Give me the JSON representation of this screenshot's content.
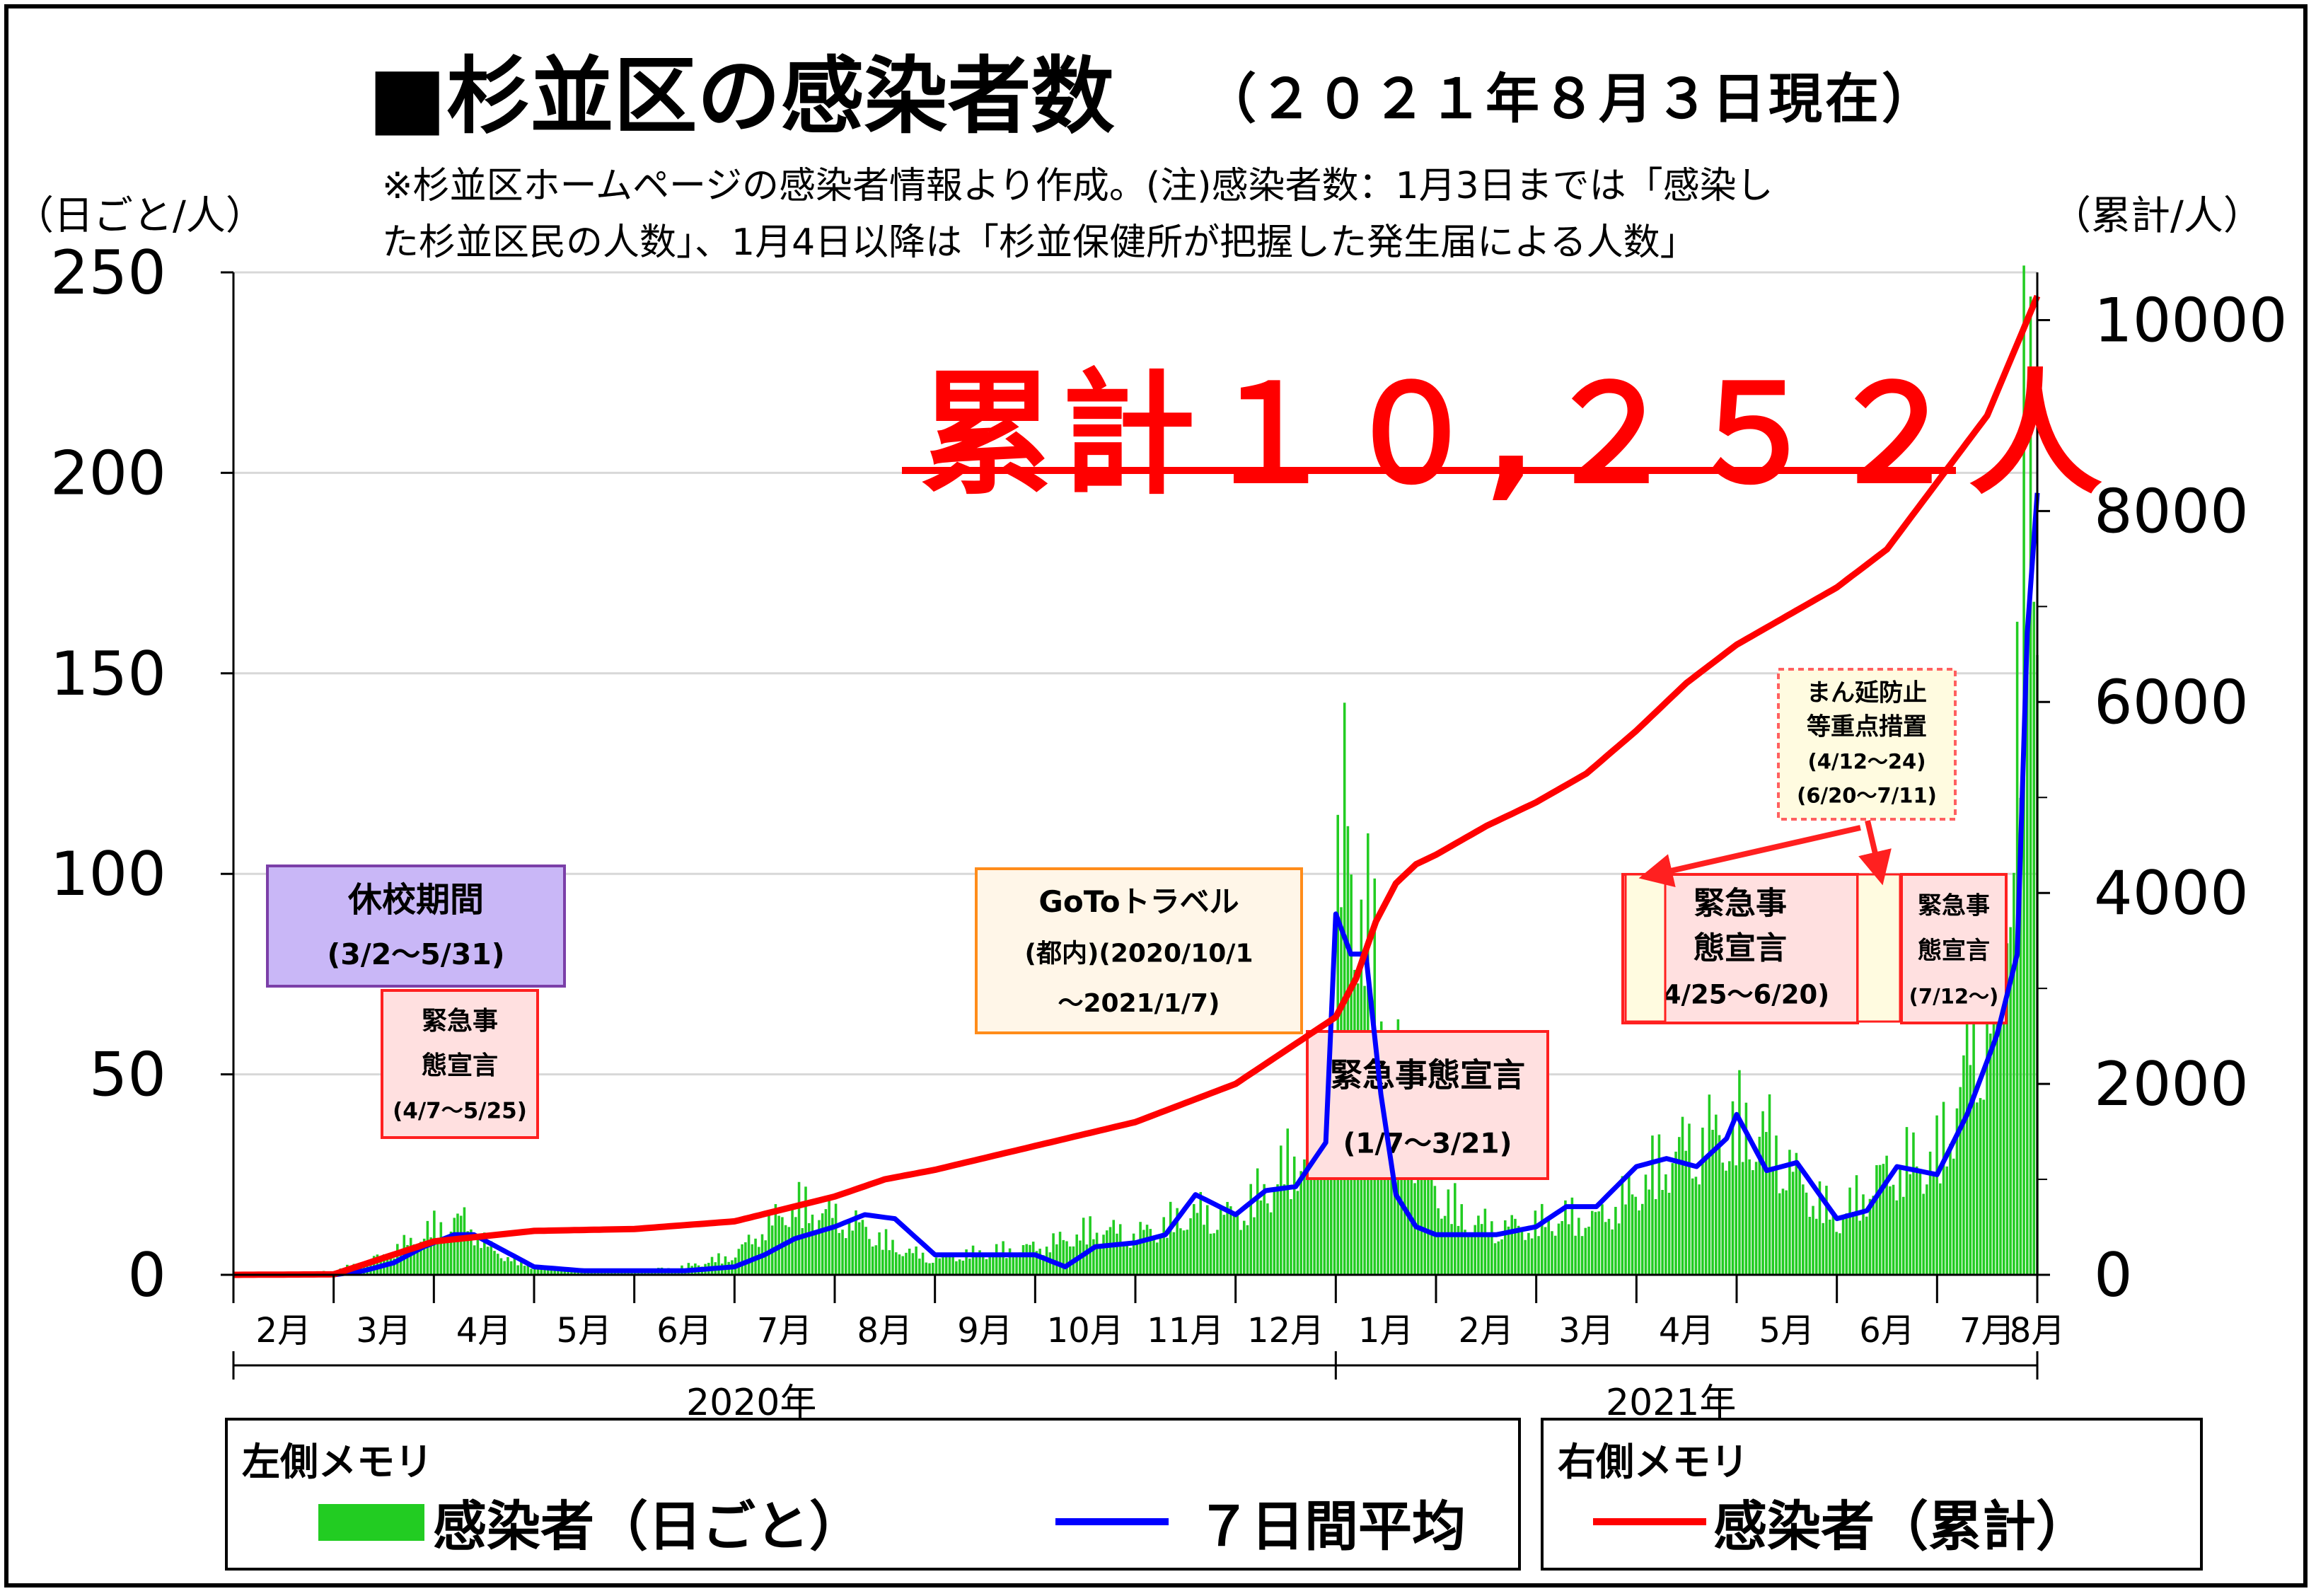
{
  "title": "■杉並区の感染者数",
  "title_date": "（２０２１年８月３日現在）",
  "notes": [
    "※杉並区ホームページの感染者情報より作成。(注)感染者数：1月3日までは「感染し",
    "た杉並区民の人数」、1月4日以降は「杉並保健所が把握した発生届による人数」"
  ],
  "left_axis_unit": "（日ごと/人）",
  "right_axis_unit": "（累計/人）",
  "total_label": "累計１０,２５２人",
  "legend": {
    "left_header": "左側メモリ",
    "daily_label": "感染者（日ごと）",
    "avg_label": "７日間平均",
    "right_header": "右側メモリ",
    "cumulative_label": "感染者（累計）"
  },
  "years": [
    "2020年",
    "2021年"
  ],
  "colors": {
    "daily": "#22cc22",
    "avg": "#0000ff",
    "cumulative": "#ff0000"
  },
  "annotations": [
    {
      "id": "school-closure",
      "lines": [
        "休校期間",
        "(3/2〜5/31)"
      ],
      "fill": "#c9b7f7",
      "border": "#7b3fa8"
    },
    {
      "id": "emergency-1",
      "lines": [
        "緊急事",
        "態宣言",
        "(4/7〜5/25)"
      ],
      "fill": "#ffe0e0",
      "border": "#ff2020"
    },
    {
      "id": "goto-travel",
      "lines": [
        "GoToトラベル",
        "(都内)(2020/10/1",
        "〜2021/1/7)"
      ],
      "fill": "#fff6e8",
      "border": "#ff8c1a"
    },
    {
      "id": "emergency-2",
      "lines": [
        "緊急事態宣言",
        "(1/7〜3/21)"
      ],
      "fill": "#ffe0e0",
      "border": "#ff2020"
    },
    {
      "id": "priority-measures",
      "lines": [
        "まん延防止",
        "等重点措置",
        "(4/12〜24)",
        "(6/20〜7/11)"
      ],
      "fill": "#fffbe0",
      "border": "#ff6060"
    },
    {
      "id": "emergency-3",
      "lines": [
        "緊急事",
        "態宣言",
        "(4/25〜6/20)"
      ],
      "fill": "#ffe0e0",
      "border": "#ff2020"
    },
    {
      "id": "emergency-4",
      "lines": [
        "緊急事",
        "態宣言",
        "(7/12〜)"
      ],
      "fill": "#ffe0e0",
      "border": "#ff2020"
    }
  ],
  "chart_data": {
    "type": "bar",
    "x_tick_labels": [
      "2月",
      "3月",
      "4月",
      "5月",
      "6月",
      "7月",
      "8月",
      "9月",
      "10月",
      "11月",
      "12月",
      "1月",
      "2月",
      "3月",
      "4月",
      "5月",
      "6月",
      "7月",
      "8月"
    ],
    "left_axis": {
      "ylim": [
        0,
        250
      ],
      "ticks": [
        "0",
        "50",
        "100",
        "150",
        "200",
        "250"
      ]
    },
    "right_axis": {
      "ylim": [
        0,
        10500
      ],
      "ticks": [
        "0",
        "2000",
        "4000",
        "6000",
        "8000",
        "10000"
      ]
    },
    "grid": "horizontal",
    "month_index": [
      0,
      1,
      2,
      3,
      4,
      5,
      6,
      7,
      8,
      9,
      10,
      11,
      12,
      13,
      14,
      15,
      16,
      17,
      18
    ],
    "series": [
      {
        "name": "感染者（日ごと）",
        "axis": "left",
        "kind": "bar",
        "x": [
          0,
          0.5,
          1,
          1.3,
          1.6,
          2,
          2.3,
          2.6,
          3,
          3.5,
          4,
          4.5,
          5,
          5.3,
          5.6,
          6,
          6.3,
          6.6,
          7,
          7.5,
          8,
          8.3,
          8.6,
          9,
          9.3,
          9.6,
          10,
          10.3,
          10.6,
          10.9,
          11.1,
          11.3,
          11.5,
          11.7,
          12,
          12.3,
          12.6,
          13,
          13.3,
          13.6,
          14,
          14.3,
          14.6,
          15,
          15.3,
          15.6,
          16,
          16.3,
          16.6,
          17,
          17.2,
          17.4,
          17.6,
          17.8,
          17.9,
          18
        ],
        "values": [
          0,
          0,
          1,
          3,
          6,
          12,
          14,
          6,
          2,
          1,
          1,
          2,
          5,
          12,
          18,
          15,
          12,
          7,
          4,
          6,
          7,
          9,
          12,
          10,
          13,
          16,
          15,
          22,
          30,
          45,
          120,
          85,
          70,
          40,
          22,
          14,
          12,
          13,
          15,
          14,
          22,
          30,
          34,
          38,
          36,
          25,
          14,
          22,
          28,
          30,
          45,
          60,
          80,
          140,
          210,
          225
        ]
      },
      {
        "name": "７日間平均",
        "axis": "left",
        "kind": "line",
        "x": [
          0,
          0.5,
          1,
          1.3,
          1.6,
          1.9,
          2.2,
          2.4,
          2.7,
          3,
          3.5,
          4,
          4.5,
          5,
          5.3,
          5.6,
          6,
          6.3,
          6.6,
          7,
          7.5,
          8,
          8.3,
          8.6,
          9,
          9.3,
          9.6,
          10,
          10.3,
          10.6,
          10.9,
          11,
          11.15,
          11.3,
          11.45,
          11.6,
          11.8,
          12,
          12.3,
          12.6,
          13,
          13.3,
          13.6,
          14,
          14.3,
          14.6,
          14.9,
          15,
          15.3,
          15.6,
          16,
          16.3,
          16.6,
          17,
          17.3,
          17.6,
          17.8,
          17.9,
          18
        ],
        "values": [
          0,
          0,
          0,
          1,
          3,
          7,
          10,
          10,
          6,
          2,
          1,
          1,
          1,
          2,
          5,
          9,
          12,
          15,
          14,
          5,
          5,
          5,
          2,
          7,
          8,
          10,
          20,
          15,
          21,
          22,
          33,
          90,
          80,
          80,
          45,
          20,
          12,
          10,
          10,
          10,
          12,
          17,
          17,
          27,
          29,
          27,
          34,
          40,
          26,
          28,
          14,
          16,
          27,
          25,
          40,
          60,
          80,
          160,
          195
        ]
      },
      {
        "name": "感染者（累計）",
        "axis": "right",
        "kind": "line",
        "x": [
          0,
          1,
          2,
          3,
          4,
          5,
          6,
          6.5,
          7,
          8,
          9,
          10,
          11,
          11.2,
          11.4,
          11.6,
          11.8,
          12,
          12.5,
          13,
          13.5,
          14,
          14.5,
          15,
          15.5,
          16,
          16.5,
          17,
          17.5,
          18
        ],
        "values": [
          0,
          5,
          350,
          460,
          480,
          560,
          820,
          1000,
          1100,
          1350,
          1600,
          2000,
          2700,
          3100,
          3700,
          4100,
          4300,
          4400,
          4700,
          4950,
          5250,
          5700,
          6200,
          6600,
          6900,
          7200,
          7600,
          8300,
          9000,
          10252
        ]
      }
    ]
  }
}
